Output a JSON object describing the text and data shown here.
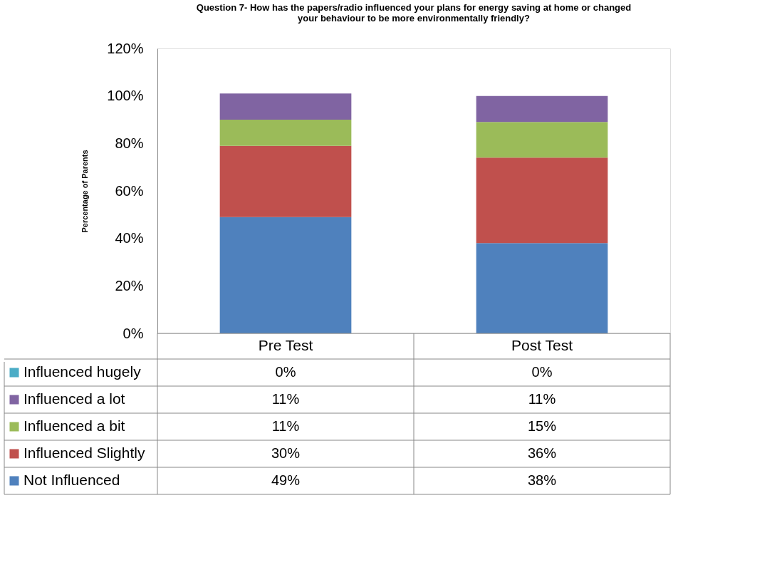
{
  "chart_data": {
    "type": "bar",
    "stacked": true,
    "title": "Question 7- How has the papers/radio influenced your plans for energy saving at home or changed your behaviour to be more environmentally friendly?",
    "ylabel": "Percentage of Parents",
    "categories": [
      "Pre Test",
      "Post Test"
    ],
    "series": [
      {
        "name": "Not Influenced",
        "color": "#4f81bd",
        "values": [
          49,
          38
        ],
        "value_labels": [
          "49%",
          "38%"
        ]
      },
      {
        "name": "Influenced Slightly",
        "color": "#c0504d",
        "values": [
          30,
          36
        ],
        "value_labels": [
          "30%",
          "36%"
        ]
      },
      {
        "name": "Influenced a bit",
        "color": "#9bbb59",
        "values": [
          11,
          15
        ],
        "value_labels": [
          "11%",
          "15%"
        ]
      },
      {
        "name": "Influenced a lot",
        "color": "#8064a2",
        "values": [
          11,
          11
        ],
        "value_labels": [
          "11%",
          "11%"
        ]
      },
      {
        "name": "Influenced hugely",
        "color": "#4bacc6",
        "values": [
          0,
          0
        ],
        "value_labels": [
          "0%",
          "0%"
        ]
      }
    ],
    "ylim": [
      0,
      120
    ],
    "yticks": [
      {
        "value": 0,
        "label": "0%"
      },
      {
        "value": 20,
        "label": "20%"
      },
      {
        "value": 40,
        "label": "40%"
      },
      {
        "value": 60,
        "label": "60%"
      },
      {
        "value": 80,
        "label": "80%"
      },
      {
        "value": 100,
        "label": "100%"
      },
      {
        "value": 120,
        "label": "120%"
      }
    ],
    "grid": false,
    "legend": "bottom left"
  }
}
